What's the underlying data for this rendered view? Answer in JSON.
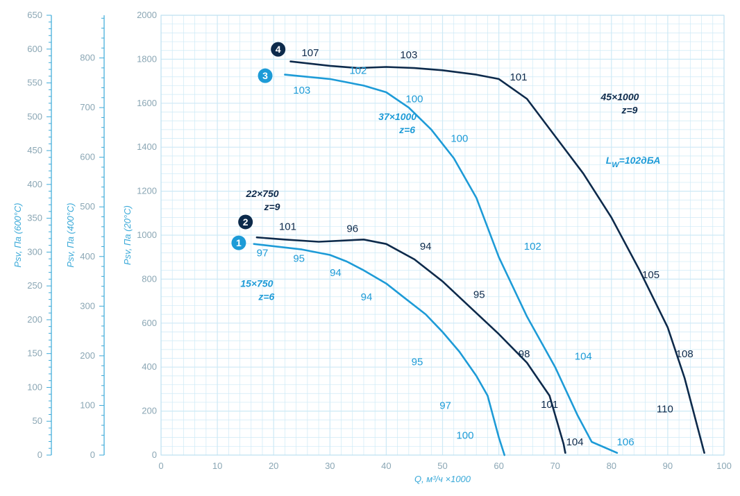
{
  "chart_data": {
    "type": "line",
    "title": "",
    "colors": {
      "dark": "#0d2a4b",
      "light": "#1d9bd7",
      "grid": "#cde9f6",
      "axis": "#3aa9d8",
      "tick_text": "#8aa6b4"
    },
    "x_axis": {
      "label": "Q, м³/ч ×1000",
      "range": [
        0,
        100
      ],
      "ticks": [
        "0",
        "10",
        "20",
        "30",
        "40",
        "50",
        "60",
        "70",
        "80",
        "90",
        "100"
      ]
    },
    "y_axes": [
      {
        "id": "psv20",
        "label": "Psv, Па (20°C)",
        "range": [
          0,
          2000
        ],
        "ticks": [
          "0",
          "200",
          "400",
          "600",
          "800",
          "1000",
          "1200",
          "1400",
          "1600",
          "1800",
          "2000"
        ]
      },
      {
        "id": "psv400",
        "label": "Psv, Па (400°C)",
        "range": [
          0,
          886
        ],
        "ticks": [
          "0",
          "100",
          "200",
          "300",
          "400",
          "500",
          "600",
          "700",
          "800"
        ]
      },
      {
        "id": "psv600",
        "label": "Psv, Па (600°C)",
        "range": [
          0,
          650
        ],
        "ticks": [
          "0",
          "50",
          "100",
          "150",
          "200",
          "250",
          "300",
          "350",
          "400",
          "450",
          "500",
          "550",
          "600",
          "650"
        ]
      }
    ],
    "grid": true,
    "series": [
      {
        "id": "1",
        "badge": "1",
        "name": "15×750",
        "z": "z=6",
        "color": "light",
        "points": [
          [
            16.5,
            960
          ],
          [
            20,
            950
          ],
          [
            25,
            935
          ],
          [
            30,
            910
          ],
          [
            33,
            880
          ],
          [
            36,
            840
          ],
          [
            40,
            780
          ],
          [
            43,
            720
          ],
          [
            47,
            640
          ],
          [
            50,
            560
          ],
          [
            53,
            470
          ],
          [
            56,
            360
          ],
          [
            58,
            270
          ],
          [
            60,
            80
          ],
          [
            61,
            0
          ]
        ],
        "noise_labels": [
          {
            "text": "97",
            "x": 18,
            "y": 920
          },
          {
            "text": "95",
            "x": 24.5,
            "y": 895
          },
          {
            "text": "94",
            "x": 31,
            "y": 830
          },
          {
            "text": "94",
            "x": 36.5,
            "y": 720
          },
          {
            "text": "95",
            "x": 45.5,
            "y": 425
          },
          {
            "text": "97",
            "x": 50.5,
            "y": 225
          },
          {
            "text": "100",
            "x": 54,
            "y": 90
          }
        ]
      },
      {
        "id": "2",
        "badge": "2",
        "name": "22×750",
        "z": "z=9",
        "color": "dark",
        "points": [
          [
            17,
            990
          ],
          [
            22,
            980
          ],
          [
            28,
            970
          ],
          [
            32,
            975
          ],
          [
            36,
            980
          ],
          [
            40,
            960
          ],
          [
            45,
            890
          ],
          [
            50,
            790
          ],
          [
            55,
            670
          ],
          [
            60,
            550
          ],
          [
            65,
            420
          ],
          [
            69,
            270
          ],
          [
            71.5,
            50
          ],
          [
            71.8,
            10
          ]
        ],
        "noise_labels": [
          {
            "text": "101",
            "x": 22.5,
            "y": 1040
          },
          {
            "text": "96",
            "x": 34,
            "y": 1030
          },
          {
            "text": "94",
            "x": 47,
            "y": 950
          },
          {
            "text": "95",
            "x": 56.5,
            "y": 730
          },
          {
            "text": "98",
            "x": 64.5,
            "y": 460
          },
          {
            "text": "101",
            "x": 69,
            "y": 230
          },
          {
            "text": "104",
            "x": 73.5,
            "y": 60
          }
        ]
      },
      {
        "id": "3",
        "badge": "3",
        "name": "37×1000",
        "z": "z=6",
        "color": "light",
        "points": [
          [
            22,
            1730
          ],
          [
            30,
            1710
          ],
          [
            36,
            1680
          ],
          [
            40,
            1650
          ],
          [
            44,
            1580
          ],
          [
            48,
            1480
          ],
          [
            52,
            1350
          ],
          [
            56,
            1170
          ],
          [
            60,
            900
          ],
          [
            65,
            630
          ],
          [
            70,
            400
          ],
          [
            74,
            180
          ],
          [
            76.5,
            60
          ],
          [
            81,
            10
          ]
        ],
        "noise_labels": [
          {
            "text": "103",
            "x": 25,
            "y": 1660
          },
          {
            "text": "102",
            "x": 35,
            "y": 1750
          },
          {
            "text": "100",
            "x": 45,
            "y": 1620
          },
          {
            "text": "100",
            "x": 53,
            "y": 1440
          },
          {
            "text": "102",
            "x": 66,
            "y": 950
          },
          {
            "text": "104",
            "x": 75,
            "y": 450
          },
          {
            "text": "106",
            "x": 82.5,
            "y": 60
          }
        ]
      },
      {
        "id": "4",
        "badge": "4",
        "name": "45×1000",
        "z": "z=9",
        "color": "dark",
        "points": [
          [
            23,
            1790
          ],
          [
            30,
            1770
          ],
          [
            35,
            1760
          ],
          [
            40,
            1765
          ],
          [
            45,
            1760
          ],
          [
            50,
            1750
          ],
          [
            56,
            1730
          ],
          [
            60,
            1710
          ],
          [
            65,
            1620
          ],
          [
            70,
            1450
          ],
          [
            75,
            1280
          ],
          [
            80,
            1080
          ],
          [
            85,
            840
          ],
          [
            90,
            580
          ],
          [
            93,
            350
          ],
          [
            96.5,
            10
          ]
        ],
        "noise_labels": [
          {
            "text": "107",
            "x": 26.5,
            "y": 1830
          },
          {
            "text": "103",
            "x": 44,
            "y": 1820
          },
          {
            "text": "101",
            "x": 63.5,
            "y": 1720
          },
          {
            "text": "105",
            "x": 87,
            "y": 820
          },
          {
            "text": "108",
            "x": 93,
            "y": 460
          },
          {
            "text": "110",
            "x": 89.5,
            "y": 210
          }
        ]
      }
    ],
    "fan_labels": [
      {
        "name": "15×750",
        "z": "z=6",
        "x": 17,
        "y": 780,
        "color": "light"
      },
      {
        "name": "22×750",
        "z": "z=9",
        "x": 18,
        "y": 1190,
        "color": "dark"
      },
      {
        "name": "37×1000",
        "z": "z=6",
        "x": 42,
        "y": 1540,
        "color": "light"
      },
      {
        "name": "45×1000",
        "z": "z=9",
        "x": 81.5,
        "y": 1630,
        "color": "dark"
      }
    ],
    "badges": [
      {
        "text": "1",
        "x": 13.8,
        "y": 965,
        "color": "light"
      },
      {
        "text": "2",
        "x": 15,
        "y": 1060,
        "color": "dark"
      },
      {
        "text": "3",
        "x": 18.5,
        "y": 1725,
        "color": "light"
      },
      {
        "text": "4",
        "x": 20.8,
        "y": 1845,
        "color": "dark"
      }
    ],
    "annotation": {
      "prefix": "L",
      "sub": "W",
      "suffix": "=102дБА",
      "x": 79,
      "y": 1340
    }
  }
}
